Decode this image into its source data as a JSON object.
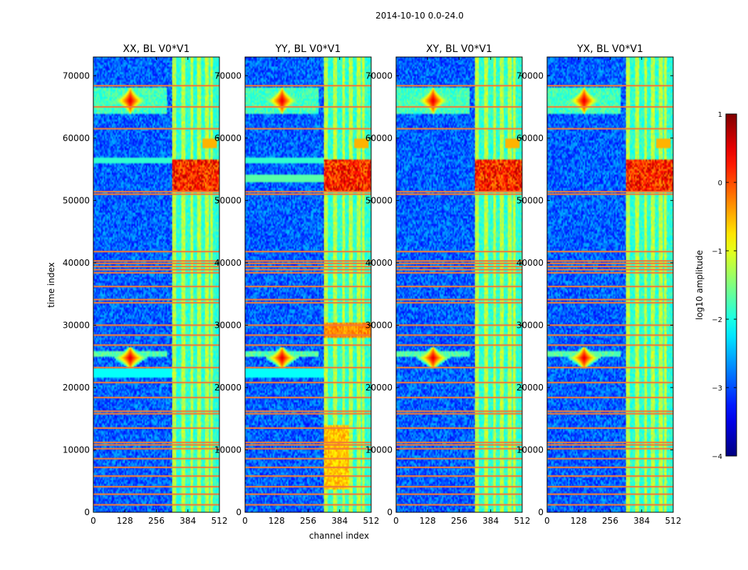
{
  "chart_data": {
    "type": "heatmap",
    "suptitle": "2014-10-10 0.0-24.0",
    "xlabel": "channel index",
    "ylabel": "time index",
    "xlim": [
      0,
      512
    ],
    "ylim": [
      0,
      73000
    ],
    "xticks": [
      0,
      128,
      256,
      384,
      512
    ],
    "yticks": [
      0,
      10000,
      20000,
      30000,
      40000,
      50000,
      60000,
      70000
    ],
    "panels": [
      {
        "title": "XX, BL V0*V1",
        "pol": "XX"
      },
      {
        "title": "YY, BL V0*V1",
        "pol": "YY"
      },
      {
        "title": "XY, BL V0*V1",
        "pol": "XY"
      },
      {
        "title": "YX, BL V0*V1",
        "pol": "YX"
      }
    ],
    "colorbar": {
      "label": "log10 amplitude",
      "range": [
        -4,
        1
      ],
      "ticks": [
        1,
        0,
        -1,
        -2,
        -3,
        -4
      ],
      "tick_labels": [
        "1",
        "0",
        "−1",
        "−2",
        "−3",
        "−4"
      ],
      "colormap": "jet"
    },
    "features": {
      "rfi_channel_band": [
        320,
        512
      ],
      "bright_channel_stripes": [
        330,
        365,
        400,
        430,
        460,
        480
      ],
      "hot_spot_time_ranges": [
        [
          64000,
          68000
        ],
        [
          23000,
          26500
        ]
      ],
      "hot_spot_channel": 150,
      "strong_block_time_range": [
        51500,
        56500
      ],
      "flagged_time_rows": [
        1200,
        2900,
        4100,
        5800,
        7200,
        8600,
        10200,
        10800,
        11200,
        13500,
        15800,
        16200,
        18400,
        20800,
        23200,
        26800,
        28400,
        30000,
        33600,
        34100,
        36200,
        38400,
        38900,
        39400,
        39900,
        40300,
        41800,
        51000,
        51400,
        61500,
        65000,
        68400
      ]
    }
  }
}
